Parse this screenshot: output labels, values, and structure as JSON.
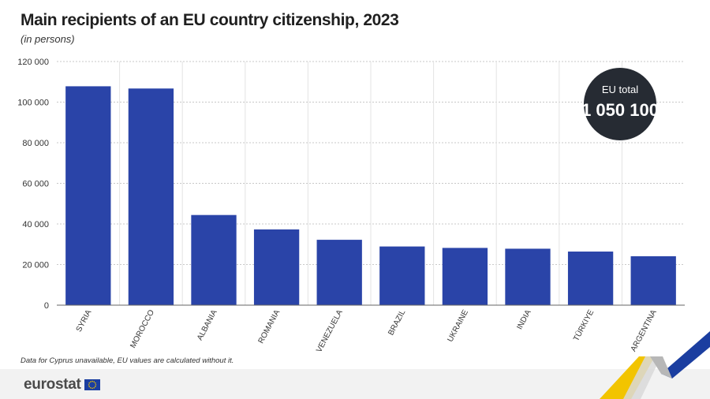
{
  "title": "Main recipients of an EU country citizenship, 2023",
  "subtitle": "(in persons)",
  "footnote": "Data for Cyprus unavailable, EU values are calculated without it.",
  "badge": {
    "label": "EU total",
    "value": "1 050 100"
  },
  "brand": {
    "name": "eurostat",
    "flag_icon": "eu-flag-icon"
  },
  "colors": {
    "bar": "#2a44a8",
    "badge": "#262b33",
    "grid": "#c8c8c8",
    "accent_yellow": "#f2c400",
    "accent_blue": "#1b3ea0"
  },
  "chart_data": {
    "type": "bar",
    "title": "Main recipients of an EU country citizenship, 2023",
    "subtitle": "(in persons)",
    "xlabel": "",
    "ylabel": "",
    "categories": [
      "SYRIA",
      "MOROCCO",
      "ALBANIA",
      "ROMANIA",
      "VENEZUELA",
      "BRAZIL",
      "UKRAINE",
      "INDIA",
      "TÜRKIYE",
      "ARGENTINA"
    ],
    "values": [
      107800,
      106700,
      44400,
      37300,
      32200,
      28900,
      28200,
      27800,
      26400,
      24100
    ],
    "ylim": [
      0,
      120000
    ],
    "yticks": [
      0,
      20000,
      40000,
      60000,
      80000,
      100000,
      120000
    ],
    "ytick_labels": [
      "0",
      "20 000",
      "40 000",
      "60 000",
      "80 000",
      "100 000",
      "120 000"
    ],
    "grid": true,
    "legend": "none"
  }
}
